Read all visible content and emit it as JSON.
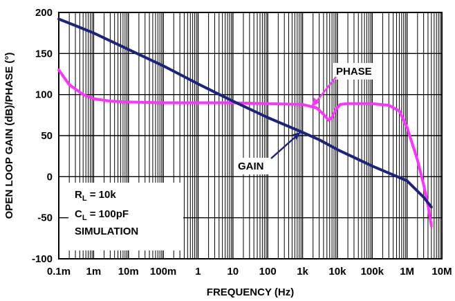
{
  "chart_data": {
    "type": "line",
    "title": "",
    "xlabel": "FREQUENCY (Hz)",
    "ylabel": "OPEN LOOP GAIN (dB)/PHASE (°)",
    "x_scale": "log",
    "xlim": [
      0.0001,
      10000000
    ],
    "ylim": [
      -100,
      200
    ],
    "x_ticks": [
      {
        "value": 0.0001,
        "label": "0.1m"
      },
      {
        "value": 0.001,
        "label": "1m"
      },
      {
        "value": 0.01,
        "label": "10m"
      },
      {
        "value": 0.1,
        "label": "100m"
      },
      {
        "value": 1,
        "label": "1"
      },
      {
        "value": 10,
        "label": "10"
      },
      {
        "value": 100,
        "label": "100"
      },
      {
        "value": 1000,
        "label": "1k"
      },
      {
        "value": 10000,
        "label": "10k"
      },
      {
        "value": 100000,
        "label": "100k"
      },
      {
        "value": 1000000,
        "label": "1M"
      },
      {
        "value": 10000000,
        "label": "10M"
      }
    ],
    "y_ticks": [
      {
        "value": 200,
        "label": "200"
      },
      {
        "value": 150,
        "label": "150"
      },
      {
        "value": 100,
        "label": "100"
      },
      {
        "value": 50,
        "label": "50"
      },
      {
        "value": 0,
        "label": "0"
      },
      {
        "value": -50,
        "label": "-50"
      },
      {
        "value": -100,
        "label": "-100"
      }
    ],
    "grid": true,
    "series": [
      {
        "name": "GAIN",
        "color": "#1a237e",
        "x": [
          0.0001,
          0.0003,
          0.001,
          0.01,
          0.1,
          1,
          10,
          100,
          1000,
          3000,
          10000,
          100000,
          1000000,
          3000000,
          5000000
        ],
        "y": [
          192,
          184,
          175,
          155,
          135,
          113,
          92,
          72,
          54,
          45,
          33,
          13,
          -5,
          -25,
          -37
        ]
      },
      {
        "name": "PHASE",
        "color": "#ff33ff",
        "x": [
          0.0001,
          0.0002,
          0.0005,
          0.001,
          0.003,
          0.01,
          0.1,
          1,
          10,
          100,
          1000,
          2500,
          4000,
          5500,
          7000,
          9000,
          12000,
          20000,
          100000,
          300000,
          600000,
          1000000,
          2000000,
          3000000,
          4000000,
          5000000
        ],
        "y": [
          130,
          112,
          100,
          95,
          92,
          91,
          90,
          90,
          90,
          89,
          88,
          84,
          76,
          69,
          72,
          82,
          88,
          89,
          89,
          87,
          80,
          60,
          20,
          -10,
          -35,
          -60
        ]
      }
    ],
    "annotations": [
      {
        "label": "PHASE"
      },
      {
        "label": "GAIN"
      }
    ],
    "legend_box": {
      "lines": [
        "R",
        "L",
        " = 10k",
        "C",
        "L",
        " = 100pF",
        "SIMULATION"
      ],
      "placement": "bottom-left"
    }
  }
}
